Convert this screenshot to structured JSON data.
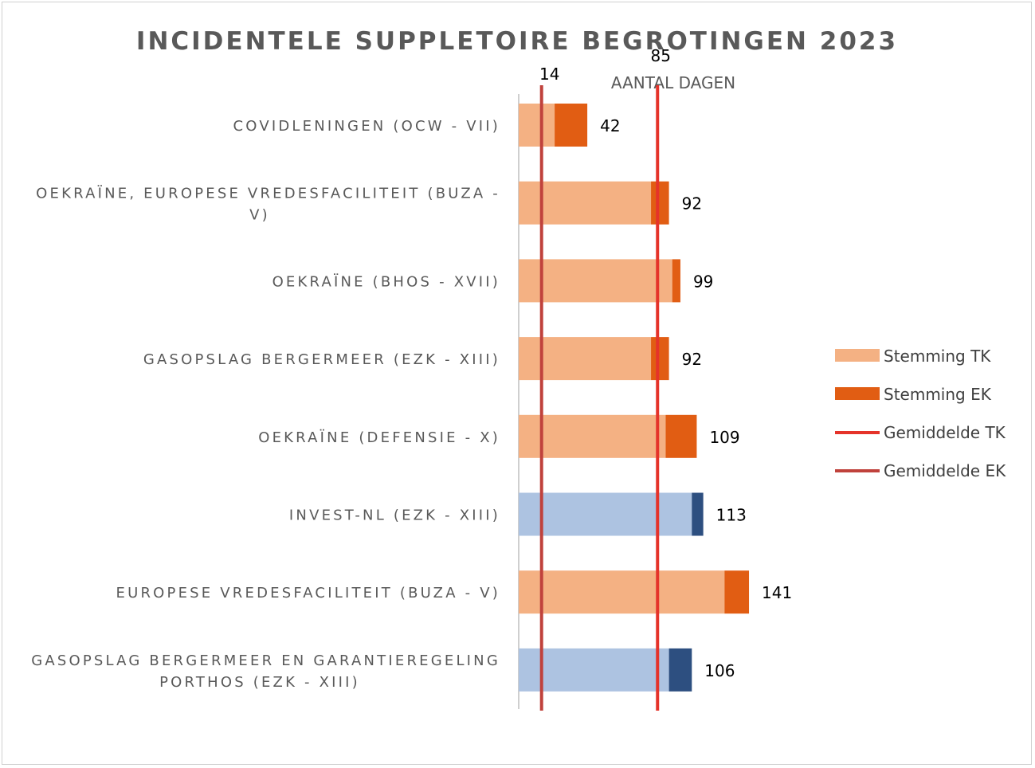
{
  "chart_data": {
    "type": "bar",
    "orientation": "horizontal",
    "stacked": true,
    "title": "INCIDENTELE SUPPLETOIRE BEGROTINGEN 2023",
    "xlabel": "AANTAL DAGEN",
    "xlim": [
      0,
      160
    ],
    "categories": [
      [
        "COVIDLENINGEN (OCW - VII)"
      ],
      [
        "OEKRAÏNE, EUROPESE VREDESFACILITEIT (BUZA -",
        "V)"
      ],
      [
        "OEKRAÏNE (BHOS - XVII)"
      ],
      [
        "GASOPSLAG BERGERMEER (EZK - XIII)"
      ],
      [
        "OEKRAÏNE (DEFENSIE - X)"
      ],
      [
        "INVEST-NL (EZK - XIII)"
      ],
      [
        "EUROPESE VREDESFACILITEIT (BUZA - V)"
      ],
      [
        "GASOPSLAG BERGERMEER EN GARANTIEREGELING",
        "PORTHOS (EZK - XIII)"
      ]
    ],
    "series": [
      {
        "name": "Stemming TK",
        "values": [
          22,
          81,
          94,
          81,
          90,
          106,
          126,
          92
        ]
      },
      {
        "name": "Stemming EK",
        "values": [
          20,
          11,
          5,
          11,
          19,
          7,
          15,
          14
        ]
      }
    ],
    "totals": [
      "42",
      "92",
      "99",
      "92",
      "109",
      "113",
      "141",
      "106"
    ],
    "highlight_rows": [
      5,
      7
    ],
    "reference_lines": [
      {
        "name": "Gemiddelde EK",
        "value": 14,
        "label": "14"
      },
      {
        "name": "Gemiddelde TK",
        "value": 85,
        "label": "85"
      }
    ],
    "legend": [
      {
        "label": "Stemming TK",
        "kind": "box"
      },
      {
        "label": "Stemming EK",
        "kind": "box"
      },
      {
        "label": "Gemiddelde TK",
        "kind": "line"
      },
      {
        "label": "Gemiddelde EK",
        "kind": "line"
      }
    ],
    "legend_position": "right",
    "colors": {
      "tk": "#f4b183",
      "ek": "#e15d13",
      "tk_highlight": "#adc3e1",
      "ek_highlight": "#2d4f80",
      "avg_tk": "#e5332a",
      "avg_ek": "#c0423c",
      "axis": "#bfbfbf"
    }
  }
}
